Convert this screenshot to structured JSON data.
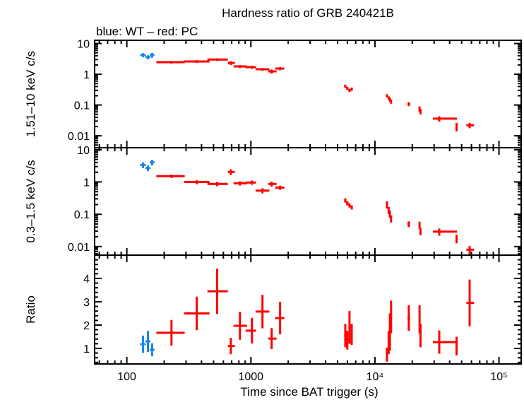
{
  "chart_data": {
    "type": "scatter",
    "title": "Hardness ratio of GRB 240421B",
    "subtitle": "blue: WT – red: PC",
    "xlabel": "Time since BAT trigger (s)",
    "xscale": "log",
    "xlim": [
      55,
      151000
    ],
    "xticks": [
      {
        "v": 100,
        "label": "100"
      },
      {
        "v": 1000,
        "label": "1000"
      },
      {
        "v": 10000,
        "label": "10⁴"
      },
      {
        "v": 100000,
        "label": "10⁵"
      }
    ],
    "colors": {
      "WT": "#1a86f0",
      "PC": "#ff0000"
    },
    "series": [
      {
        "name": "WT",
        "color": "#1a86f0",
        "x": [
          135,
          148,
          160
        ],
        "xerr": [
          [
            128,
            142
          ],
          [
            141,
            155
          ],
          [
            153,
            167
          ]
        ]
      },
      {
        "name": "PC",
        "color": "#ff0000",
        "x": [
          229,
          366,
          535,
          689,
          816,
          1020,
          1240,
          1470,
          1720,
          5770,
          5990,
          6240,
          6500,
          12500,
          12900,
          13200,
          13500,
          18750,
          22900,
          23300,
          33000,
          45500,
          58000
        ],
        "xerr": [
          [
            173,
            293
          ],
          [
            289,
            464
          ],
          [
            446,
            652
          ],
          [
            652,
            743
          ],
          [
            725,
            931
          ],
          [
            905,
            1100
          ],
          [
            1090,
            1410
          ],
          [
            1380,
            1610
          ],
          [
            1570,
            1860
          ],
          [
            5650,
            5890
          ],
          [
            5870,
            6110
          ],
          [
            6110,
            6370
          ],
          [
            6370,
            6630
          ],
          [
            12300,
            12700
          ],
          [
            12700,
            13100
          ],
          [
            13000,
            13400
          ],
          [
            13300,
            13700
          ],
          [
            18300,
            19200
          ],
          [
            22600,
            23200
          ],
          [
            23000,
            23600
          ],
          [
            29300,
            45800
          ],
          [
            45000,
            46000
          ],
          [
            54600,
            63000
          ]
        ]
      }
    ],
    "panels": [
      {
        "ylabel": "1.51–10 keV c/s",
        "yscale": "log",
        "ylim": [
          0.0041,
          12.7
        ],
        "yticks": [
          {
            "v": 0.01,
            "label": "0.01"
          },
          {
            "v": 0.1,
            "label": "0.1"
          },
          {
            "v": 1,
            "label": "1"
          },
          {
            "v": 10,
            "label": "10"
          }
        ],
        "values": {
          "WT": [
            4.2,
            3.6,
            4.2
          ],
          "PC": [
            2.46,
            2.6,
            3.0,
            2.33,
            1.79,
            1.7,
            1.45,
            1.24,
            1.53,
            0.41,
            0.35,
            0.3,
            0.33,
            0.2,
            0.17,
            0.15,
            0.13,
            0.108,
            0.075,
            0.062,
            0.036,
            0.02,
            0.022
          ]
        },
        "rel_err": {
          "WT": [
            0.15,
            0.15,
            0.18
          ],
          "PC": [
            0.1,
            0.1,
            0.1,
            0.15,
            0.12,
            0.12,
            0.1,
            0.15,
            0.12,
            0.12,
            0.12,
            0.12,
            0.12,
            0.12,
            0.12,
            0.15,
            0.15,
            0.15,
            0.2,
            0.2,
            0.2,
            0.3,
            0.2
          ]
        }
      },
      {
        "ylabel": "0.3–1.5 keV c/s",
        "yscale": "log",
        "ylim": [
          0.00543,
          11.5
        ],
        "yticks": [
          {
            "v": 0.01,
            "label": "0.01"
          },
          {
            "v": 0.1,
            "label": "0.1"
          },
          {
            "v": 1,
            "label": "1"
          },
          {
            "v": 10,
            "label": "10"
          }
        ],
        "values": {
          "WT": [
            3.35,
            2.7,
            4.05
          ],
          "PC": [
            1.51,
            1.0,
            0.87,
            2.05,
            0.91,
            0.96,
            0.54,
            0.87,
            0.67,
            0.27,
            0.22,
            0.19,
            0.165,
            0.2,
            0.135,
            0.105,
            0.074,
            0.05,
            0.047,
            0.03,
            0.029,
            0.018,
            0.008
          ]
        },
        "rel_err": {
          "WT": [
            0.2,
            0.2,
            0.2
          ],
          "PC": [
            0.12,
            0.15,
            0.15,
            0.2,
            0.15,
            0.15,
            0.18,
            0.18,
            0.15,
            0.15,
            0.15,
            0.15,
            0.15,
            0.25,
            0.25,
            0.25,
            0.25,
            0.2,
            0.25,
            0.25,
            0.25,
            0.3,
            0.3
          ]
        }
      },
      {
        "ylabel": "Ratio",
        "yscale": "linear",
        "ylim": [
          0.333,
          5.0
        ],
        "yticks": [
          {
            "v": 1,
            "label": "1"
          },
          {
            "v": 2,
            "label": "2"
          },
          {
            "v": 3,
            "label": "3"
          },
          {
            "v": 4,
            "label": "4"
          }
        ],
        "values": {
          "WT": [
            1.18,
            1.3,
            0.94
          ],
          "PC": [
            1.67,
            2.5,
            3.45,
            1.1,
            1.97,
            1.76,
            2.58,
            1.42,
            2.3,
            1.55,
            1.35,
            1.9,
            1.6,
            0.73,
            1.25,
            1.7,
            2.35,
            2.3,
            2.25,
            1.55,
            1.27,
            1.1,
            2.95
          ]
        },
        "abs_err": {
          "WT": [
            0.37,
            0.45,
            0.28
          ],
          "PC": [
            0.55,
            0.72,
            0.97,
            0.35,
            0.6,
            0.55,
            0.72,
            0.45,
            0.7,
            0.5,
            0.4,
            0.7,
            0.45,
            0.3,
            0.5,
            0.8,
            0.7,
            0.55,
            0.6,
            0.5,
            0.5,
            0.4,
            1.0
          ]
        }
      }
    ]
  }
}
